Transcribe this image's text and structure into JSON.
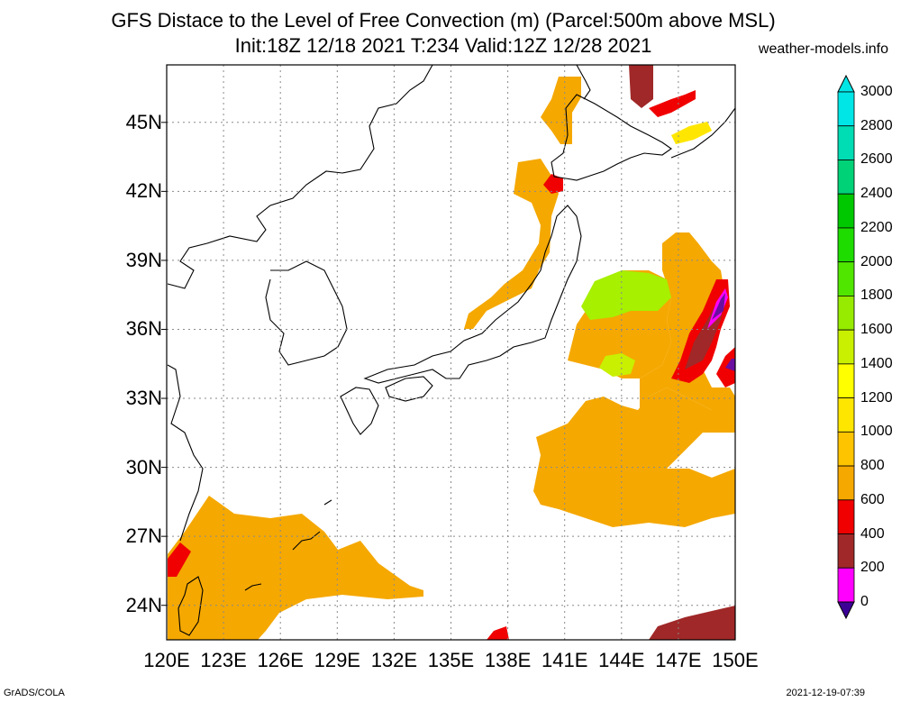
{
  "header": {
    "title": "GFS Distace to the Level of Free Convection (m) (Parcel:500m above MSL)",
    "subtitle": "Init:18Z 12/18 2021 T:234 Valid:12Z 12/28 2021",
    "credit": "weather-models.info"
  },
  "footer": {
    "software": "GrADS/COLA",
    "timestamp": "2021-12-19-07:39"
  },
  "map": {
    "region": "Japan and surrounding seas",
    "lon_range": [
      120,
      150
    ],
    "lat_range": [
      22.5,
      47.5
    ],
    "grid": true,
    "x_ticks": [
      "120E",
      "123E",
      "126E",
      "129E",
      "132E",
      "135E",
      "138E",
      "141E",
      "144E",
      "147E",
      "150E"
    ],
    "y_ticks": [
      "24N",
      "27N",
      "30N",
      "33N",
      "36N",
      "39N",
      "42N",
      "45N"
    ],
    "colors": {
      "orange": "#f5a800",
      "lightorange": "#ffc400",
      "yellow": "#ffe600",
      "lime": "#a6f000",
      "red": "#f00000",
      "brown": "#a02828",
      "magenta": "#ff00ff",
      "purple": "#6a0fa0"
    }
  },
  "colorbar": {
    "labels": [
      "3000",
      "2800",
      "2600",
      "2400",
      "2200",
      "2000",
      "1800",
      "1600",
      "1400",
      "1200",
      "1000",
      "800",
      "600",
      "400",
      "200",
      "0"
    ],
    "colors": [
      "#00e6e6",
      "#00dcb4",
      "#00d278",
      "#00c800",
      "#1edc00",
      "#50e600",
      "#96eb00",
      "#c8f000",
      "#ffff00",
      "#ffe600",
      "#ffc400",
      "#f5a800",
      "#f00000",
      "#a02828",
      "#ff00ff",
      "#3c0096"
    ]
  }
}
